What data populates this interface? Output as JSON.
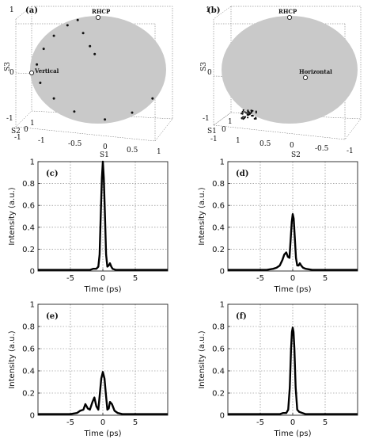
{
  "chart_data": [
    {
      "type": "scatter",
      "panel": "a",
      "label": "(a)",
      "view": "poincare-sphere",
      "axes": {
        "z": {
          "label": "S3",
          "ticks": [
            "1",
            "0",
            "-1"
          ]
        },
        "left": {
          "label": "S2",
          "ticks": [
            "1",
            "0",
            "-1"
          ]
        },
        "bottom": {
          "label": "S1",
          "ticks": [
            "-1",
            "-0.5",
            "0",
            "0.5",
            "1"
          ]
        }
      },
      "annotations": [
        {
          "text": "RHCP",
          "S1": 0,
          "S2": 0,
          "S3": 1
        },
        {
          "text": "Vertical",
          "S1": -1,
          "S2": 0,
          "S3": 0
        }
      ],
      "trajectory": [
        {
          "S1": -0.3,
          "S2": 0.0,
          "S3": 0.95
        },
        {
          "S1": -0.22,
          "S2": 0.0,
          "S3": 0.7
        },
        {
          "S1": -0.12,
          "S2": 0.0,
          "S3": 0.45
        },
        {
          "S1": -0.05,
          "S2": 0.0,
          "S3": 0.3
        },
        {
          "S1": -0.45,
          "S2": 0.0,
          "S3": 0.85
        },
        {
          "S1": -0.65,
          "S2": 0.0,
          "S3": 0.65
        },
        {
          "S1": -0.8,
          "S2": 0.0,
          "S3": 0.4
        },
        {
          "S1": -0.9,
          "S2": 0.0,
          "S3": 0.1
        },
        {
          "S1": -0.85,
          "S2": 0.0,
          "S3": -0.25
        },
        {
          "S1": -0.65,
          "S2": 0.0,
          "S3": -0.55
        },
        {
          "S1": -0.35,
          "S2": 0.0,
          "S3": -0.8
        },
        {
          "S1": 0.1,
          "S2": 0.0,
          "S3": -0.95
        },
        {
          "S1": 0.5,
          "S2": 0.0,
          "S3": -0.82
        },
        {
          "S1": 0.8,
          "S2": 0.0,
          "S3": -0.55
        }
      ]
    },
    {
      "type": "scatter",
      "panel": "b",
      "label": "(b)",
      "view": "poincare-sphere",
      "axes": {
        "z": {
          "label": "S3",
          "ticks": [
            "1",
            "0",
            "-1"
          ]
        },
        "left": {
          "label": "S1",
          "ticks": [
            "1",
            "0",
            "-1"
          ]
        },
        "bottom": {
          "label": "S2",
          "ticks": [
            "1",
            "0.5",
            "0",
            "-0.5",
            "-1"
          ]
        }
      },
      "annotations": [
        {
          "text": "RHCP",
          "S1": 0,
          "S2": 0,
          "S3": 1
        },
        {
          "text": "Horizontal",
          "S1": 1,
          "S2": 0,
          "S3": 0
        }
      ],
      "cluster": {
        "S1": 0.75,
        "S2": 0.55,
        "S3": -0.55,
        "spread": 0.06
      }
    },
    {
      "type": "line",
      "panel": "c",
      "label": "(c)",
      "xlabel": "Time (ps)",
      "ylabel": "Intensity (a.u.)",
      "xlim": [
        -10,
        10
      ],
      "ylim": [
        0,
        1
      ],
      "xticks": [
        -5,
        0,
        5
      ],
      "yticks": [
        0,
        0.2,
        0.4,
        0.6,
        0.8,
        1
      ],
      "xtick_labels": [
        "-5",
        "0",
        "5"
      ],
      "ytick_labels": [
        "0",
        "0.2",
        "0.4",
        "0.6",
        "0.8",
        "1"
      ],
      "grid": true,
      "x": [
        -10,
        -3,
        -2,
        -1.5,
        -1,
        -0.7,
        -0.5,
        -0.3,
        -0.15,
        0,
        0.15,
        0.3,
        0.5,
        0.7,
        0.9,
        1.1,
        1.3,
        1.5,
        2,
        3,
        10
      ],
      "y": [
        0.01,
        0.01,
        0.01,
        0.02,
        0.02,
        0.04,
        0.15,
        0.55,
        0.85,
        1.0,
        0.85,
        0.55,
        0.15,
        0.04,
        0.05,
        0.07,
        0.04,
        0.02,
        0.01,
        0.01,
        0.01
      ]
    },
    {
      "type": "line",
      "panel": "d",
      "label": "(d)",
      "xlabel": "Time (ps)",
      "ylabel": "Intensity (a.u.)",
      "xlim": [
        -10,
        10
      ],
      "ylim": [
        0,
        1
      ],
      "xticks": [
        -5,
        0,
        5
      ],
      "yticks": [
        0,
        0.2,
        0.4,
        0.6,
        0.8,
        1
      ],
      "xtick_labels": [
        "-5",
        "0",
        "5"
      ],
      "ytick_labels": [
        "0",
        "0.2",
        "0.4",
        "0.6",
        "0.8",
        "1"
      ],
      "grid": true,
      "x": [
        -10,
        -4,
        -3,
        -2.5,
        -2,
        -1.6,
        -1.3,
        -1.0,
        -0.75,
        -0.5,
        -0.3,
        -0.15,
        0,
        0.15,
        0.3,
        0.5,
        0.7,
        0.9,
        1.1,
        1.3,
        1.6,
        2,
        3,
        10
      ],
      "y": [
        0.01,
        0.01,
        0.02,
        0.03,
        0.05,
        0.1,
        0.15,
        0.17,
        0.13,
        0.12,
        0.3,
        0.45,
        0.52,
        0.48,
        0.32,
        0.12,
        0.05,
        0.05,
        0.07,
        0.05,
        0.03,
        0.02,
        0.01,
        0.01
      ]
    },
    {
      "type": "line",
      "panel": "e",
      "label": "(e)",
      "xlabel": "Time (ps)",
      "ylabel": "Intensity (a.u.)",
      "xlim": [
        -10,
        10
      ],
      "ylim": [
        0,
        1
      ],
      "xticks": [
        -5,
        0,
        5
      ],
      "yticks": [
        0,
        0.2,
        0.4,
        0.6,
        0.8,
        1
      ],
      "xtick_labels": [
        "-5",
        "0",
        "5"
      ],
      "ytick_labels": [
        "0",
        "0.2",
        "0.4",
        "0.6",
        "0.8",
        "1"
      ],
      "grid": true,
      "x": [
        -10,
        -6,
        -5,
        -4,
        -3.5,
        -3,
        -2.7,
        -2.3,
        -2,
        -1.6,
        -1.3,
        -1,
        -0.7,
        -0.45,
        -0.25,
        0,
        0.25,
        0.45,
        0.7,
        0.9,
        1.1,
        1.4,
        1.8,
        2.3,
        3,
        4,
        10
      ],
      "y": [
        0.01,
        0.01,
        0.01,
        0.02,
        0.04,
        0.05,
        0.1,
        0.06,
        0.05,
        0.12,
        0.16,
        0.08,
        0.05,
        0.2,
        0.33,
        0.39,
        0.33,
        0.2,
        0.05,
        0.06,
        0.12,
        0.1,
        0.04,
        0.02,
        0.01,
        0.01,
        0.01
      ]
    },
    {
      "type": "line",
      "panel": "f",
      "label": "(f)",
      "xlabel": "Time (ps)",
      "ylabel": "Intensity (a.u.)",
      "xlim": [
        -10,
        10
      ],
      "ylim": [
        0,
        1
      ],
      "xticks": [
        -5,
        0,
        5
      ],
      "yticks": [
        0,
        0.2,
        0.4,
        0.6,
        0.8,
        1
      ],
      "xtick_labels": [
        "-5",
        "0",
        "5"
      ],
      "ytick_labels": [
        "0",
        "0.2",
        "0.4",
        "0.6",
        "0.8",
        "1"
      ],
      "grid": true,
      "x": [
        -10,
        -4,
        -2,
        -1.5,
        -1,
        -0.7,
        -0.45,
        -0.25,
        -0.12,
        0,
        0.12,
        0.25,
        0.45,
        0.7,
        1,
        1.5,
        2,
        4,
        10
      ],
      "y": [
        0.01,
        0.01,
        0.01,
        0.02,
        0.02,
        0.05,
        0.25,
        0.6,
        0.75,
        0.79,
        0.75,
        0.6,
        0.25,
        0.05,
        0.03,
        0.02,
        0.01,
        0.01,
        0.01
      ]
    }
  ]
}
